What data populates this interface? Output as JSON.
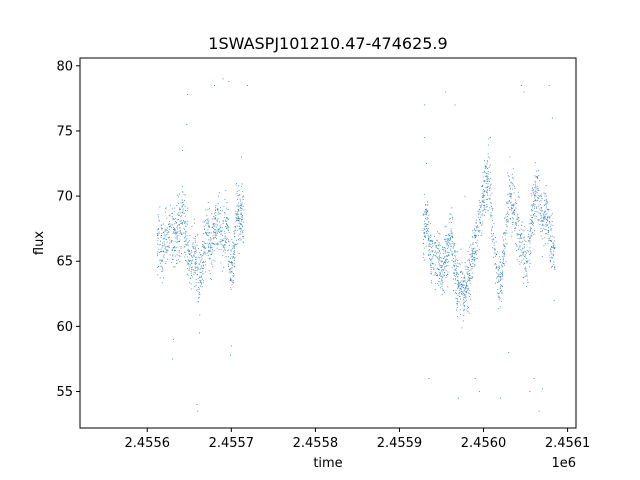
{
  "chart_data": {
    "type": "scatter",
    "title": "1SWASPJ101210.47-474625.9",
    "xlabel": "time",
    "ylabel": "flux",
    "x_offset_label": "1e6",
    "xlim": [
      2.45552,
      2.45611
    ],
    "ylim": [
      52.2,
      80.6
    ],
    "x_ticks": [
      2.4556,
      2.4557,
      2.4558,
      2.4559,
      2.456,
      2.4561
    ],
    "x_tick_labels": [
      "2.4556",
      "2.4557",
      "2.4558",
      "2.4559",
      "2.4560",
      "2.4561"
    ],
    "y_ticks": [
      55,
      60,
      65,
      70,
      75,
      80
    ],
    "y_tick_labels": [
      "55",
      "60",
      "65",
      "70",
      "75",
      "80"
    ],
    "grid": false,
    "point_color": "#1f77b4",
    "series": [
      {
        "segments": [
          {
            "x_range": [
              2.455612,
              2.455715
            ],
            "trend": [
              [
                2.455612,
                66.5
              ],
              [
                2.455618,
                66.0
              ],
              [
                2.455625,
                67.0
              ],
              [
                2.455632,
                66.5
              ],
              [
                2.455638,
                67.5
              ],
              [
                2.455643,
                68.5
              ],
              [
                2.455648,
                66.0
              ],
              [
                2.455652,
                64.5
              ],
              [
                2.455657,
                65.5
              ],
              [
                2.455662,
                63.5
              ],
              [
                2.455666,
                65.0
              ],
              [
                2.455671,
                67.5
              ],
              [
                2.455676,
                66.0
              ],
              [
                2.455681,
                67.5
              ],
              [
                2.455686,
                68.0
              ],
              [
                2.45569,
                67.0
              ],
              [
                2.455695,
                68.0
              ],
              [
                2.455699,
                64.5
              ],
              [
                2.455703,
                65.5
              ],
              [
                2.455706,
                69.0
              ],
              [
                2.45571,
                68.5
              ],
              [
                2.455715,
                68.0
              ]
            ],
            "spread": 2.6
          },
          {
            "x_range": [
              2.455928,
              2.456085
            ],
            "trend": [
              [
                2.455928,
                67.5
              ],
              [
                2.455933,
                68.0
              ],
              [
                2.455938,
                65.0
              ],
              [
                2.455945,
                65.5
              ],
              [
                2.455951,
                64.0
              ],
              [
                2.455958,
                66.0
              ],
              [
                2.455962,
                67.0
              ],
              [
                2.455968,
                63.5
              ],
              [
                2.455975,
                62.5
              ],
              [
                2.455982,
                63.5
              ],
              [
                2.455988,
                66.0
              ],
              [
                2.455994,
                68.0
              ],
              [
                2.456001,
                70.0
              ],
              [
                2.456006,
                71.5
              ],
              [
                2.456011,
                68.0
              ],
              [
                2.456016,
                64.0
              ],
              [
                2.456021,
                63.5
              ],
              [
                2.456026,
                67.0
              ],
              [
                2.456031,
                70.5
              ],
              [
                2.456037,
                68.5
              ],
              [
                2.456042,
                67.0
              ],
              [
                2.456047,
                66.0
              ],
              [
                2.456052,
                64.5
              ],
              [
                2.456058,
                69.0
              ],
              [
                2.456064,
                70.5
              ],
              [
                2.45607,
                68.0
              ],
              [
                2.456075,
                69.0
              ],
              [
                2.45608,
                66.5
              ],
              [
                2.456085,
                65.5
              ]
            ],
            "spread": 2.4
          }
        ],
        "outliers": [
          [
            2.455631,
            59.0
          ],
          [
            2.45563,
            57.5
          ],
          [
            2.455642,
            73.5
          ],
          [
            2.455648,
            77.8
          ],
          [
            2.455647,
            75.5
          ],
          [
            2.455659,
            54.0
          ],
          [
            2.45566,
            53.5
          ],
          [
            2.455662,
            59.5
          ],
          [
            2.45568,
            78.5
          ],
          [
            2.45569,
            79.0
          ],
          [
            2.455697,
            78.8
          ],
          [
            2.455699,
            57.8
          ],
          [
            2.4557,
            58.5
          ],
          [
            2.455719,
            78.5
          ],
          [
            2.455712,
            73.0
          ],
          [
            2.45593,
            77.0
          ],
          [
            2.455932,
            72.5
          ],
          [
            2.45593,
            74.5
          ],
          [
            2.455935,
            56.0
          ],
          [
            2.455955,
            78.0
          ],
          [
            2.455966,
            77.0
          ],
          [
            2.45597,
            54.5
          ],
          [
            2.455978,
            70.0
          ],
          [
            2.45599,
            56.0
          ],
          [
            2.455995,
            55.0
          ],
          [
            2.456008,
            74.5
          ],
          [
            2.45602,
            54.5
          ],
          [
            2.45603,
            58.0
          ],
          [
            2.456045,
            78.5
          ],
          [
            2.456048,
            78.0
          ],
          [
            2.456055,
            55.0
          ],
          [
            2.45606,
            56.0
          ],
          [
            2.456066,
            53.5
          ],
          [
            2.45607,
            55.2
          ],
          [
            2.456078,
            78.5
          ],
          [
            2.456082,
            76.0
          ],
          [
            2.456084,
            62.0
          ]
        ]
      }
    ]
  }
}
